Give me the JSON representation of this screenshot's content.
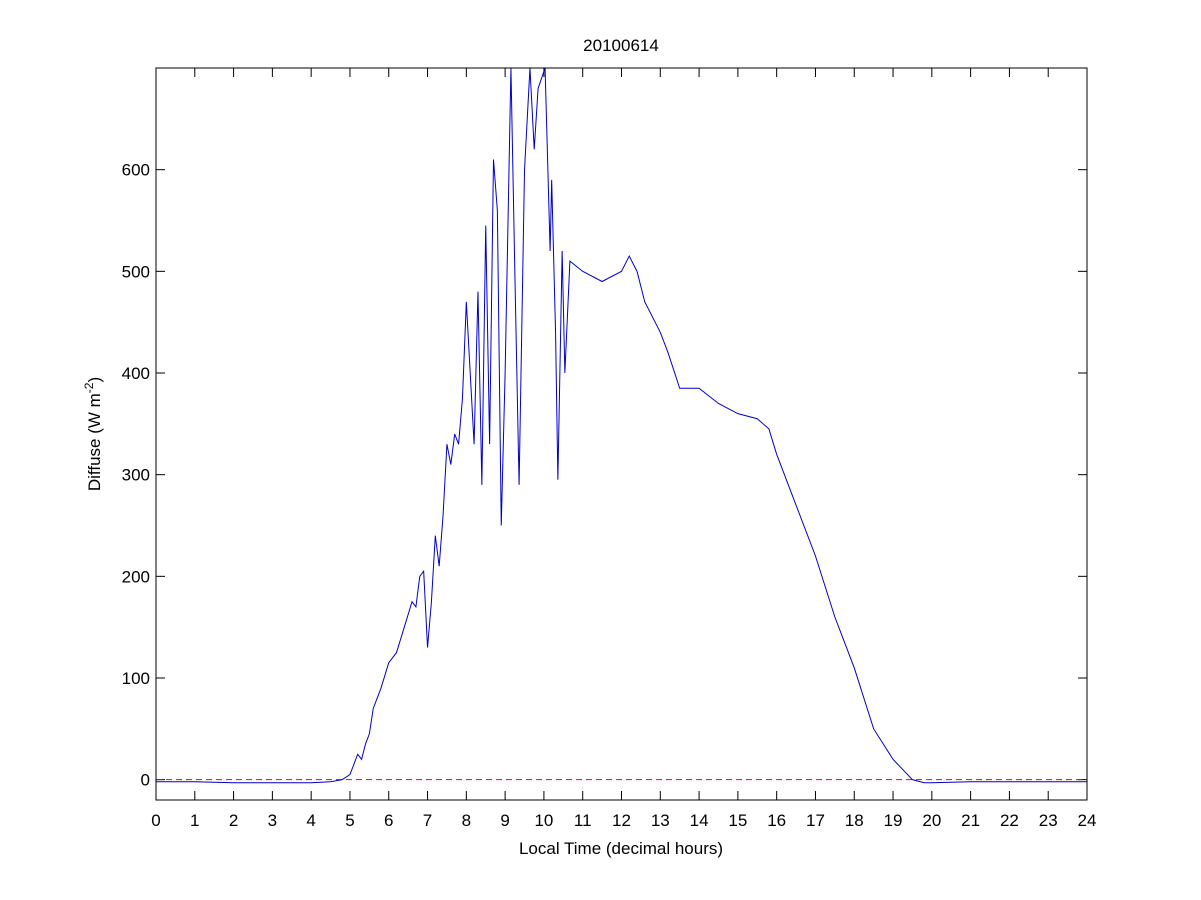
{
  "chart_data": {
    "type": "line",
    "title": "20100614",
    "xlabel": "Local Time (decimal hours)",
    "ylabel": [
      "Diffuse (W m",
      "-2",
      ")"
    ],
    "xlim": [
      0,
      24
    ],
    "ylim": [
      -20,
      700
    ],
    "xticks": [
      0,
      1,
      2,
      3,
      4,
      5,
      6,
      7,
      8,
      9,
      10,
      11,
      12,
      13,
      14,
      15,
      16,
      17,
      18,
      19,
      20,
      21,
      22,
      23,
      24
    ],
    "yticks": [
      0,
      100,
      200,
      300,
      400,
      500,
      600
    ],
    "reference_line": {
      "value": 0,
      "color": "#ff0000",
      "dashed": true
    },
    "series": [
      {
        "color": "#0000cc",
        "x": [
          0,
          1,
          2,
          3,
          4,
          4.5,
          4.8,
          5.0,
          5.1,
          5.2,
          5.3,
          5.4,
          5.5,
          5.6,
          5.8,
          6.0,
          6.2,
          6.4,
          6.6,
          6.7,
          6.8,
          6.9,
          7.0,
          7.1,
          7.2,
          7.3,
          7.4,
          7.5,
          7.6,
          7.7,
          7.8,
          7.9,
          8.0,
          8.1,
          8.2,
          8.3,
          8.4,
          8.5,
          8.6,
          8.7,
          8.8,
          8.9,
          9.0,
          9.15,
          9.25,
          9.36,
          9.5,
          9.64,
          9.75,
          9.85,
          10.03,
          10.16,
          10.2,
          10.3,
          10.36,
          10.47,
          10.54,
          10.67,
          11,
          11.5,
          12,
          12.2,
          12.4,
          12.6,
          13,
          13.2,
          13.5,
          14,
          14.5,
          15,
          15.5,
          15.8,
          16,
          16.5,
          17,
          17.5,
          18,
          18.5,
          19,
          19.5,
          19.8,
          20,
          21,
          22,
          23,
          24
        ],
        "values": [
          -2,
          -2,
          -3,
          -3,
          -3,
          -2,
          0,
          5,
          15,
          25,
          20,
          35,
          45,
          70,
          90,
          115,
          125,
          150,
          175,
          170,
          200,
          205,
          130,
          175,
          240,
          210,
          260,
          330,
          310,
          340,
          330,
          375,
          470,
          400,
          330,
          480,
          290,
          545,
          330,
          610,
          560,
          250,
          400,
          700,
          500,
          290,
          600,
          700,
          620,
          680,
          700,
          520,
          590,
          440,
          295,
          520,
          400,
          510,
          500,
          490,
          500,
          515,
          500,
          470,
          440,
          420,
          385,
          385,
          370,
          360,
          355,
          345,
          320,
          270,
          220,
          160,
          110,
          50,
          20,
          0,
          -3,
          -3,
          -2,
          -2,
          -2,
          -2
        ]
      }
    ]
  }
}
